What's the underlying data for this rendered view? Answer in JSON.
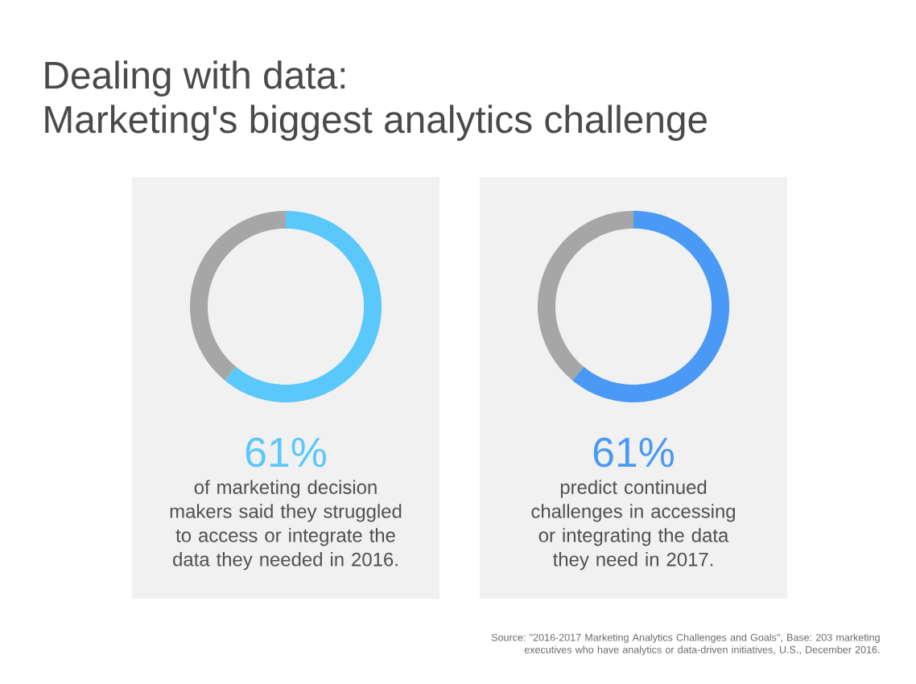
{
  "chart_data": [
    {
      "type": "donut",
      "title": "Dealing with data:",
      "subtitle": "Marketing's biggest analytics challenge",
      "categories": [
        null,
        null
      ],
      "values": [
        61,
        39
      ],
      "colors": [
        "#5ac8fa",
        "#a6a6a6"
      ],
      "value_labels": [
        "61%",
        null
      ],
      "annotations": [
        "of marketing decision makers said they struggled to access or integrate the data they needed in 2016."
      ]
    },
    {
      "type": "donut",
      "categories": [
        null,
        null
      ],
      "values": [
        61,
        39
      ],
      "colors": [
        "#4a9af5",
        "#a6a6a6"
      ],
      "value_labels": [
        "61%",
        null
      ],
      "annotations": [
        "predict continued challenges in accessing or integrating the data they need in 2017.",
        "Source: \"2016-2017 Marketing Analytics Challenges and Goals\", Base: 203 marketing executives who have analytics or data-driven initiatives, U.S., December 2016."
      ]
    }
  ]
}
